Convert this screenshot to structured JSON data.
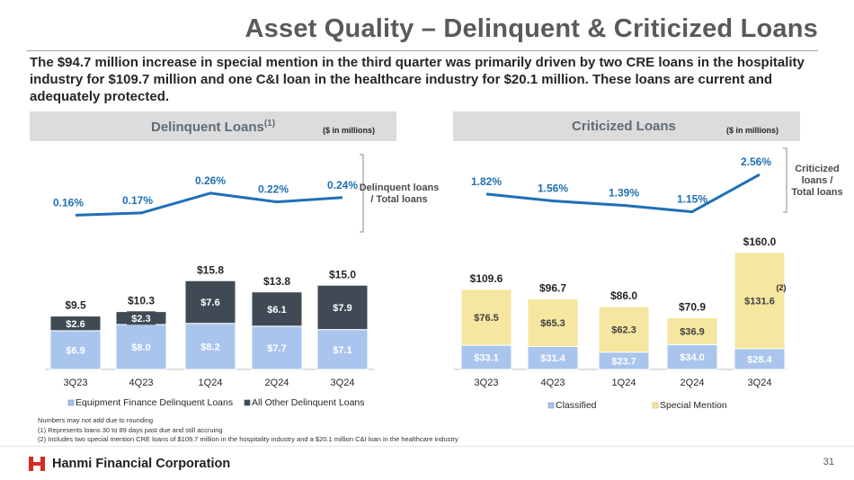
{
  "header": {
    "title": "Asset Quality – Delinquent & Criticized Loans",
    "intro": "The $94.7 million increase in special mention in the third quarter was primarily driven by two CRE loans in the hospitality industry for $109.7 million and one C&I loan in the healthcare industry for $20.1 million. These loans are current and adequately protected."
  },
  "left_panel": {
    "title": "Delinquent Loans",
    "title_sup": "(1)",
    "unit": "($ in millions)"
  },
  "right_panel": {
    "title": "Criticized Loans",
    "unit": "($ in millions)"
  },
  "colors": {
    "line": "#1f6fb5",
    "equip": "#a9c5ee",
    "other": "#3f4a55",
    "classified": "#a9c5ee",
    "special": "#f5e6a0"
  },
  "chart_data": [
    {
      "type": "line",
      "categories": [
        "3Q23",
        "4Q23",
        "1Q24",
        "2Q24",
        "3Q24"
      ],
      "series": [
        {
          "name": "Delinquent loans / Total loans",
          "values": [
            0.16,
            0.17,
            0.26,
            0.22,
            0.24
          ],
          "labels": [
            "0.16%",
            "0.17%",
            "0.26%",
            "0.22%",
            "0.24%"
          ]
        }
      ],
      "ylim": [
        0.1,
        0.28
      ]
    },
    {
      "type": "bar",
      "stacked": true,
      "categories": [
        "3Q23",
        "4Q23",
        "1Q24",
        "2Q24",
        "3Q24"
      ],
      "series": [
        {
          "name": "Equipment Finance Delinquent Loans",
          "values": [
            6.9,
            8.0,
            8.2,
            7.7,
            7.1
          ],
          "labels": [
            "$6.9",
            "$8.0",
            "$8.2",
            "$7.7",
            "$7.1"
          ]
        },
        {
          "name": "All Other Delinquent Loans",
          "values": [
            2.6,
            2.3,
            7.6,
            6.1,
            7.9
          ],
          "labels": [
            "$2.6",
            "$2.3",
            "$7.6",
            "$6.1",
            "$7.9"
          ]
        }
      ],
      "totals": [
        9.5,
        10.3,
        15.8,
        13.8,
        15.0
      ],
      "total_labels": [
        "$9.5",
        "$10.3",
        "$15.8",
        "$13.8",
        "$15.0"
      ],
      "legend": "bottom",
      "ylim": [
        0,
        16
      ]
    },
    {
      "type": "line",
      "categories": [
        "3Q23",
        "4Q23",
        "1Q24",
        "2Q24",
        "3Q24"
      ],
      "series": [
        {
          "name": "Criticized loans / Total loans",
          "values": [
            1.82,
            1.56,
            1.39,
            1.15,
            2.56
          ],
          "labels": [
            "1.82%",
            "1.56%",
            "1.39%",
            "1.15%",
            "2.56%"
          ]
        }
      ],
      "ylim": [
        1.0,
        2.6
      ]
    },
    {
      "type": "bar",
      "stacked": true,
      "categories": [
        "3Q23",
        "4Q23",
        "1Q24",
        "2Q24",
        "3Q24"
      ],
      "series": [
        {
          "name": "Classified",
          "values": [
            33.1,
            31.4,
            23.7,
            34.0,
            28.4
          ],
          "labels": [
            "$33.1",
            "$31.4",
            "$23.7",
            "$34.0",
            "$28.4"
          ]
        },
        {
          "name": "Special Mention",
          "values": [
            76.5,
            65.3,
            62.3,
            36.9,
            131.6
          ],
          "labels": [
            "$76.5",
            "$65.3",
            "$62.3",
            "$36.9",
            "$131.6"
          ]
        }
      ],
      "totals": [
        109.6,
        96.7,
        86.0,
        70.9,
        160.0
      ],
      "total_labels": [
        "$109.6",
        "$96.7",
        "$86.0",
        "$70.9",
        "$160.0"
      ],
      "annotation": "(2)",
      "legend": "bottom",
      "ylim": [
        0,
        160
      ]
    }
  ],
  "side_labels": {
    "delinquent_ratio": [
      "Delinquent loans",
      "/ Total loans"
    ],
    "criticized_ratio": [
      "Criticized",
      "loans /",
      "Total loans"
    ]
  },
  "footnotes": {
    "note0": "Numbers may not add due to rounding",
    "note1": "(1)    Represents loans 30 to 89 days past due and still accruing",
    "note2": "(2)    Includes two special mention CRE loans of $109.7 million in the hospitality industry and a $20.1 million C&I loan in the healthcare industry"
  },
  "footer": {
    "company": "Hanmi Financial Corporation",
    "page_number": "31",
    "logo_icon": "hanmi-logo-icon"
  }
}
